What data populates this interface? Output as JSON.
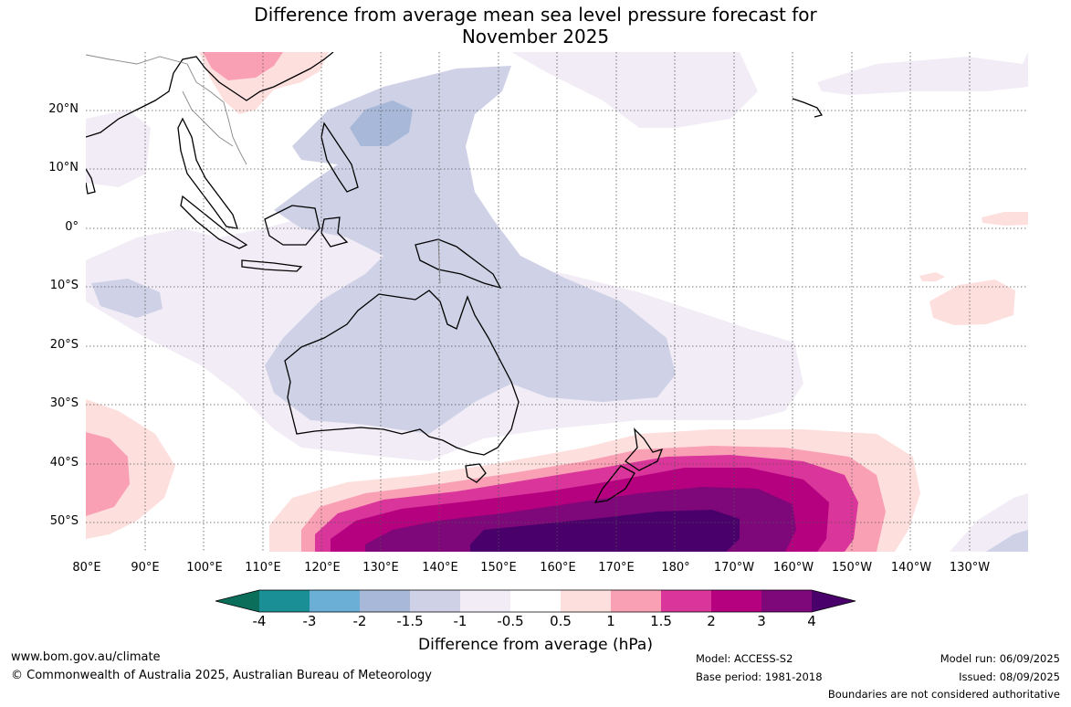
{
  "title": {
    "line1": "Difference from average mean sea level pressure forecast for",
    "line2": "November 2025"
  },
  "map": {
    "latitude_labels": [
      "20°N",
      "10°N",
      "0°",
      "10°S",
      "20°S",
      "30°S",
      "40°S",
      "50°S"
    ],
    "longitude_labels": [
      "80°E",
      "90°E",
      "100°E",
      "110°E",
      "120°E",
      "130°E",
      "140°E",
      "150°E",
      "160°E",
      "170°E",
      "180°",
      "170°W",
      "160°W",
      "150°W",
      "140°W",
      "130°W"
    ],
    "extent": {
      "lon_min": 80,
      "lon_max": 240,
      "lat_min": -55,
      "lat_max": 30
    }
  },
  "colorbar": {
    "title": "Difference from average (hPa)",
    "tick_labels": [
      "-4",
      "-3",
      "-2",
      "-1.5",
      "-1",
      "-0.5",
      "0.5",
      "1",
      "1.5",
      "2",
      "3",
      "4"
    ],
    "colors": {
      "extend_low": "#0b6e5a",
      "bins": [
        "#1a9096",
        "#6baed6",
        "#a7b8d8",
        "#cfd1e6",
        "#f1ecf5",
        "#ffffff",
        "#fde0de",
        "#f9a0b5",
        "#d9359a",
        "#b5007f",
        "#7e0779"
      ],
      "extend_high": "#49006a"
    }
  },
  "footer": {
    "website": "www.bom.gov.au/climate",
    "copyright": "© Commonwealth of Australia 2025, Australian Bureau of Meteorology",
    "model": "Model: ACCESS-S2",
    "base_period": "Base period: 1981-2018",
    "model_run": "Model run: 06/09/2025",
    "issued": "Issued: 08/09/2025",
    "disclaimer": "Boundaries are not considered authoritative"
  }
}
